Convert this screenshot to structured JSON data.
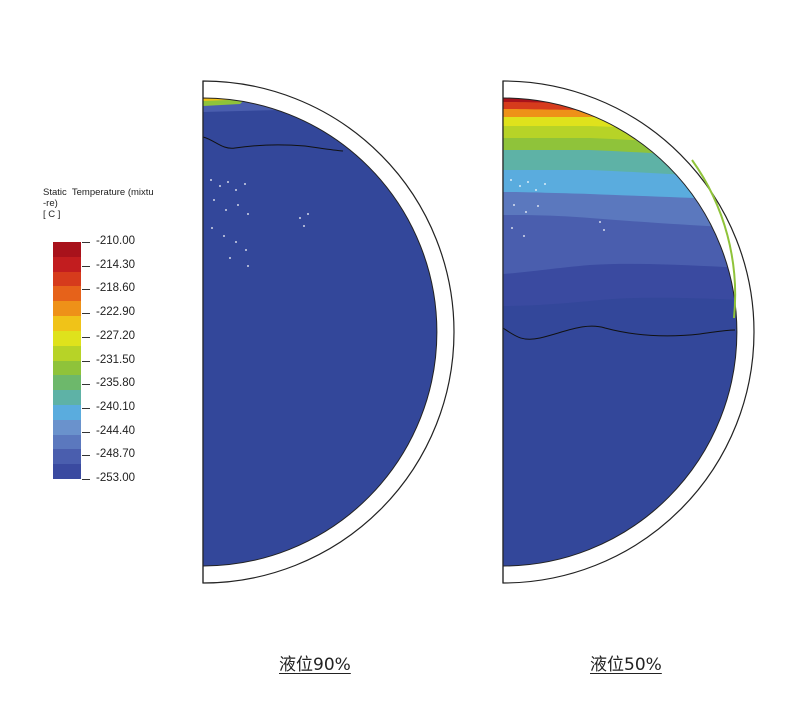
{
  "legend": {
    "title_lines": [
      "Static  Temperature (mixtu",
      "-re)",
      "[ C ]"
    ],
    "ticks": [
      "-210.00",
      "-214.30",
      "-218.60",
      "-222.90",
      "-227.20",
      "-231.50",
      "-235.80",
      "-240.10",
      "-244.40",
      "-248.70",
      "-253.00"
    ],
    "colors_top_to_bottom": [
      "#a8121b",
      "#c21d1f",
      "#d63b1c",
      "#e6621a",
      "#ee9118",
      "#f0c318",
      "#dfe21c",
      "#b7d327",
      "#8fc33a",
      "#6db86b",
      "#5eb2a6",
      "#5aacde",
      "#6a92cc",
      "#5b78be",
      "#4a5eae",
      "#3a4aa0"
    ]
  },
  "panels": [
    {
      "caption": "液位90%"
    },
    {
      "caption": "液位50%"
    }
  ]
}
